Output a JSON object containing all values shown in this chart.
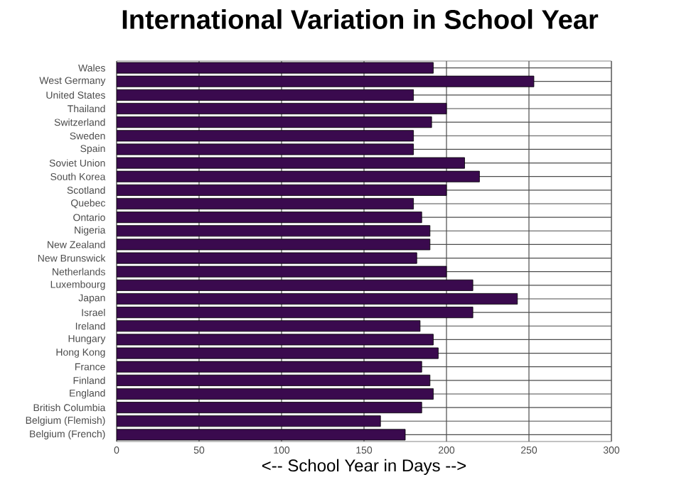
{
  "chart_data": {
    "type": "bar",
    "orientation": "horizontal",
    "title": "International Variation in School Year",
    "xlabel": "<-- School Year in Days -->",
    "categories": [
      "Wales",
      "West Germany",
      "United States",
      "Thailand",
      "Switzerland",
      "Sweden",
      "Spain",
      "Soviet Union",
      "South Korea",
      "Scotland",
      "Quebec",
      "Ontario",
      "Nigeria",
      "New Zealand",
      "New Brunswick",
      "Netherlands",
      "Luxembourg",
      "Japan",
      "Israel",
      "Ireland",
      "Hungary",
      "Hong Kong",
      "France",
      "Finland",
      "England",
      "British Columbia",
      "Belgium (Flemish)",
      "Belgium (French)"
    ],
    "values": [
      192,
      253,
      180,
      200,
      191,
      180,
      180,
      211,
      220,
      200,
      180,
      185,
      190,
      190,
      182,
      200,
      216,
      243,
      216,
      184,
      192,
      195,
      185,
      190,
      192,
      185,
      160,
      175
    ],
    "color": "#3a0a4e",
    "xlim": [
      0,
      300
    ],
    "xticks": [
      0,
      50,
      100,
      150,
      200,
      250,
      300
    ],
    "grid": true
  }
}
